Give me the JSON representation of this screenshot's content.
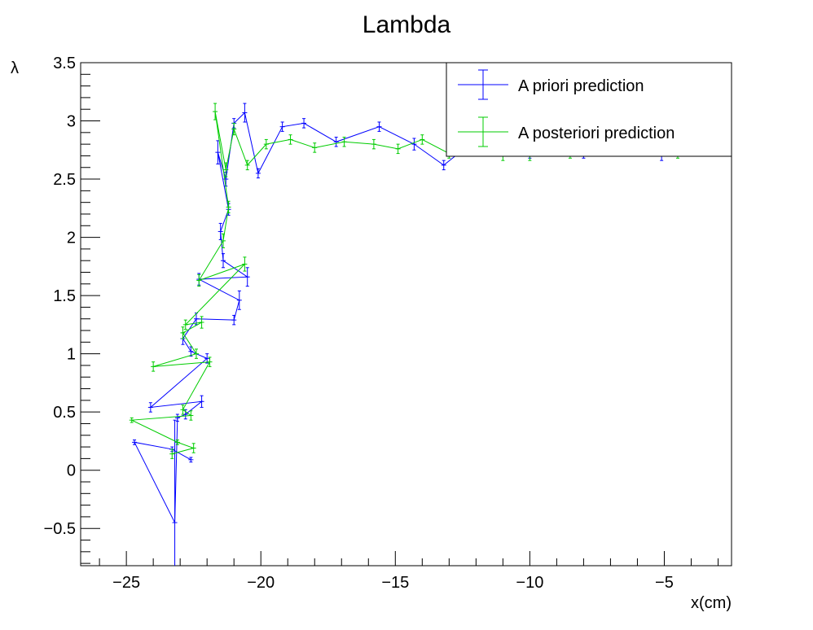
{
  "chart_data": {
    "type": "line",
    "title": "Lambda",
    "xlabel": "x(cm)",
    "ylabel": "λ",
    "xlim": [
      -26.7,
      -2.5
    ],
    "ylim": [
      -0.82,
      3.5
    ],
    "x_ticks": [
      -25,
      -20,
      -15,
      -10,
      -5
    ],
    "x_tick_labels": [
      "−25",
      "−20",
      "−15",
      "−10",
      "−5"
    ],
    "y_ticks": [
      -0.5,
      0,
      0.5,
      1,
      1.5,
      2,
      2.5,
      3,
      3.5
    ],
    "y_tick_labels": [
      "−0.5",
      "0",
      "0.5",
      "1",
      "1.5",
      "2",
      "2.5",
      "3",
      "3.5"
    ],
    "grid": false,
    "legend_position": "top-right",
    "error_bars": true,
    "series": [
      {
        "name": "A priori prediction",
        "color": "#0000ff",
        "points": [
          [
            -22.6,
            0.09,
            0.02
          ],
          [
            -23.3,
            0.18,
            0.02
          ],
          [
            -24.7,
            0.24,
            0.02
          ],
          [
            -23.2,
            -0.45,
            0.88
          ],
          [
            -23.1,
            0.45,
            0.03
          ],
          [
            -22.8,
            0.48,
            0.04
          ],
          [
            -22.2,
            0.59,
            0.05
          ],
          [
            -24.1,
            0.54,
            0.04
          ],
          [
            -22.0,
            0.96,
            0.04
          ],
          [
            -22.6,
            1.02,
            0.04
          ],
          [
            -22.9,
            1.13,
            0.05
          ],
          [
            -22.4,
            1.3,
            0.05
          ],
          [
            -21.0,
            1.29,
            0.04
          ],
          [
            -20.8,
            1.46,
            0.08
          ],
          [
            -22.3,
            1.64,
            0.05
          ],
          [
            -20.5,
            1.66,
            0.08
          ],
          [
            -21.4,
            1.8,
            0.06
          ],
          [
            -21.5,
            2.05,
            0.07
          ],
          [
            -21.2,
            2.24,
            0.05
          ],
          [
            -21.6,
            2.73,
            0.1
          ],
          [
            -21.3,
            2.5,
            0.06
          ],
          [
            -21.0,
            2.98,
            0.04
          ],
          [
            -20.6,
            3.07,
            0.08
          ],
          [
            -20.1,
            2.55,
            0.04
          ],
          [
            -19.2,
            2.95,
            0.04
          ],
          [
            -18.4,
            2.98,
            0.04
          ],
          [
            -17.2,
            2.82,
            0.04
          ],
          [
            -15.6,
            2.95,
            0.04
          ],
          [
            -14.3,
            2.8,
            0.05
          ],
          [
            -13.2,
            2.62,
            0.04
          ],
          [
            -12.0,
            2.84,
            0.04
          ],
          [
            -10.0,
            2.72,
            0.04
          ],
          [
            -8.0,
            2.72,
            0.04
          ],
          [
            -5.1,
            2.7,
            0.04
          ]
        ]
      },
      {
        "name": "A posteriori prediction",
        "color": "#00cc00",
        "points": [
          [
            -23.3,
            0.14,
            0.04
          ],
          [
            -22.5,
            0.19,
            0.04
          ],
          [
            -23.1,
            0.24,
            0.02
          ],
          [
            -24.8,
            0.43,
            0.02
          ],
          [
            -22.6,
            0.47,
            0.04
          ],
          [
            -22.9,
            0.52,
            0.04
          ],
          [
            -21.9,
            0.93,
            0.04
          ],
          [
            -24.0,
            0.89,
            0.04
          ],
          [
            -22.4,
            1.0,
            0.04
          ],
          [
            -22.9,
            1.18,
            0.05
          ],
          [
            -22.2,
            1.27,
            0.05
          ],
          [
            -22.8,
            1.25,
            0.04
          ],
          [
            -20.6,
            1.77,
            0.06
          ],
          [
            -22.3,
            1.63,
            0.05
          ],
          [
            -21.4,
            1.97,
            0.06
          ],
          [
            -21.2,
            2.26,
            0.05
          ],
          [
            -21.7,
            3.08,
            0.07
          ],
          [
            -21.3,
            2.58,
            0.06
          ],
          [
            -21.0,
            2.93,
            0.05
          ],
          [
            -20.5,
            2.62,
            0.04
          ],
          [
            -19.8,
            2.8,
            0.04
          ],
          [
            -18.9,
            2.84,
            0.04
          ],
          [
            -18.0,
            2.77,
            0.04
          ],
          [
            -16.9,
            2.82,
            0.04
          ],
          [
            -15.8,
            2.8,
            0.04
          ],
          [
            -14.9,
            2.76,
            0.04
          ],
          [
            -14.0,
            2.84,
            0.04
          ],
          [
            -13.0,
            2.72,
            0.04
          ],
          [
            -12.0,
            2.75,
            0.04
          ],
          [
            -11.0,
            2.7,
            0.04
          ],
          [
            -10.0,
            2.7,
            0.04
          ],
          [
            -8.5,
            2.72,
            0.04
          ],
          [
            -6.5,
            2.74,
            0.04
          ],
          [
            -4.5,
            2.72,
            0.04
          ]
        ]
      }
    ]
  }
}
